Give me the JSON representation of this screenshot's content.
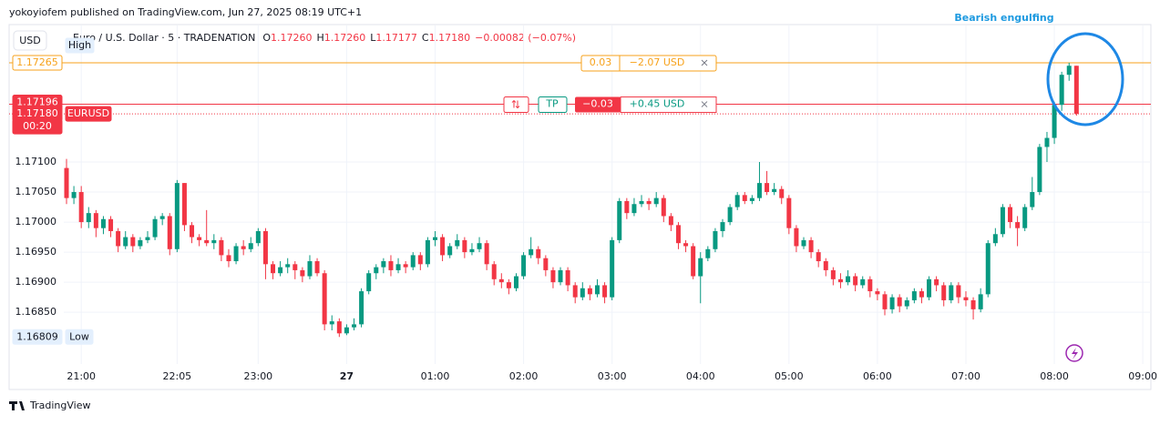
{
  "header": {
    "publisher": "yokoyiofem published on TradingView.com, Jun 27, 2025 08:19 UTC+1"
  },
  "chart_data": {
    "type": "candlestick",
    "title": "Euro / U.S. Dollar · 5 · TRADENATION",
    "ohlc_legend": [
      {
        "key": "O",
        "value": "1.17260"
      },
      {
        "key": "H",
        "value": "1.17260"
      },
      {
        "key": "L",
        "value": "1.17177"
      },
      {
        "key": "C",
        "value": "1.17180"
      }
    ],
    "change": "−0.00082 (−0.07%)",
    "currency": "USD",
    "annotation": "Bearish engulfing",
    "up_color": "#089981",
    "down_color": "#f23645",
    "x": [
      "20:50",
      "20:55",
      "21:00",
      "21:05",
      "21:10",
      "21:15",
      "21:20",
      "21:25",
      "21:30",
      "21:35",
      "21:40",
      "21:45",
      "21:50",
      "21:55",
      "22:00",
      "22:05",
      "22:10",
      "22:15",
      "22:20",
      "22:25",
      "22:30",
      "22:35",
      "22:40",
      "22:45",
      "22:50",
      "22:55",
      "23:00",
      "23:05",
      "23:10",
      "23:15",
      "23:20",
      "23:25",
      "23:30",
      "23:35",
      "23:40",
      "23:45",
      "23:50",
      "23:55",
      "00:00",
      "00:05",
      "00:10",
      "00:15",
      "00:20",
      "00:25",
      "00:30",
      "00:35",
      "00:40",
      "00:45",
      "00:50",
      "00:55",
      "01:00",
      "01:05",
      "01:10",
      "01:15",
      "01:20",
      "01:25",
      "01:30",
      "01:35",
      "01:40",
      "01:45",
      "01:50",
      "01:55",
      "02:00",
      "02:05",
      "02:10",
      "02:15",
      "02:20",
      "02:25",
      "02:30",
      "02:35",
      "02:40",
      "02:45",
      "02:50",
      "02:55",
      "03:00",
      "03:05",
      "03:10",
      "03:15",
      "03:20",
      "03:25",
      "03:30",
      "03:35",
      "03:40",
      "03:45",
      "03:50",
      "03:55",
      "04:00",
      "04:05",
      "04:10",
      "04:15",
      "04:20",
      "04:25",
      "04:30",
      "04:35",
      "04:40",
      "04:45",
      "04:50",
      "04:55",
      "05:00",
      "05:05",
      "05:10",
      "05:15",
      "05:20",
      "05:25",
      "05:30",
      "05:35",
      "05:40",
      "05:45",
      "05:50",
      "05:55",
      "06:00",
      "06:05",
      "06:10",
      "06:15",
      "06:20",
      "06:25",
      "06:30",
      "06:35",
      "06:40",
      "06:45",
      "06:50",
      "06:55",
      "07:00",
      "07:05",
      "07:10",
      "07:15",
      "07:20",
      "07:25",
      "07:30",
      "07:35",
      "07:40",
      "07:45",
      "07:50",
      "07:55",
      "08:00",
      "08:05",
      "08:10",
      "08:15"
    ],
    "open": [
      1.1709,
      1.1704,
      1.1705,
      1.17,
      1.17015,
      1.1699,
      1.17005,
      1.16985,
      1.1696,
      1.16975,
      1.1696,
      1.1697,
      1.16975,
      1.17005,
      1.1701,
      1.16955,
      1.17065,
      1.16995,
      1.16975,
      1.1697,
      1.16965,
      1.1697,
      1.16945,
      1.16935,
      1.1696,
      1.16955,
      1.16965,
      1.16985,
      1.1693,
      1.16915,
      1.16925,
      1.1693,
      1.1692,
      1.1691,
      1.16935,
      1.16915,
      1.1683,
      1.16835,
      1.16815,
      1.16825,
      1.1683,
      1.16885,
      1.16915,
      1.16925,
      1.16935,
      1.1692,
      1.1693,
      1.16925,
      1.16945,
      1.1693,
      1.1697,
      1.16975,
      1.16945,
      1.1696,
      1.1697,
      1.1695,
      1.16955,
      1.16965,
      1.1693,
      1.16905,
      1.169,
      1.1689,
      1.1691,
      1.16945,
      1.16955,
      1.1694,
      1.1692,
      1.169,
      1.1692,
      1.16895,
      1.16875,
      1.1689,
      1.1688,
      1.16895,
      1.16875,
      1.1697,
      1.17035,
      1.17015,
      1.1703,
      1.17035,
      1.1703,
      1.1704,
      1.1701,
      1.16995,
      1.16965,
      1.1696,
      1.1691,
      1.1694,
      1.16955,
      1.16985,
      1.17,
      1.17025,
      1.17045,
      1.17035,
      1.1704,
      1.17065,
      1.1705,
      1.17055,
      1.1704,
      1.1699,
      1.1696,
      1.1697,
      1.1695,
      1.16935,
      1.1692,
      1.16905,
      1.169,
      1.1691,
      1.16895,
      1.16905,
      1.16885,
      1.1688,
      1.16855,
      1.16875,
      1.1686,
      1.1687,
      1.16885,
      1.16875,
      1.16905,
      1.16895,
      1.1687,
      1.16895,
      1.16875,
      1.1687,
      1.16855,
      1.1688,
      1.16965,
      1.1698,
      1.17025,
      1.17,
      1.1699,
      1.17025,
      1.1705,
      1.17125,
      1.1714,
      1.17195,
      1.17245,
      1.1726
    ],
    "high": [
      1.17105,
      1.1706,
      1.1706,
      1.17025,
      1.1702,
      1.1701,
      1.1701,
      1.1699,
      1.16985,
      1.1698,
      1.16975,
      1.16985,
      1.1701,
      1.17015,
      1.17015,
      1.1707,
      1.17065,
      1.17,
      1.1698,
      1.1702,
      1.1698,
      1.16975,
      1.16955,
      1.16965,
      1.1697,
      1.16975,
      1.1699,
      1.1699,
      1.16935,
      1.16935,
      1.1694,
      1.16935,
      1.16925,
      1.16945,
      1.1694,
      1.1692,
      1.16845,
      1.1684,
      1.1683,
      1.1684,
      1.1689,
      1.1692,
      1.1693,
      1.1694,
      1.16945,
      1.1694,
      1.16935,
      1.1695,
      1.1695,
      1.16975,
      1.16985,
      1.1698,
      1.16965,
      1.1698,
      1.16975,
      1.16965,
      1.16975,
      1.1697,
      1.16935,
      1.16915,
      1.16905,
      1.16915,
      1.1695,
      1.16975,
      1.1696,
      1.16945,
      1.16925,
      1.16925,
      1.16925,
      1.169,
      1.169,
      1.16895,
      1.16905,
      1.169,
      1.16975,
      1.1704,
      1.1704,
      1.1704,
      1.17045,
      1.1704,
      1.1705,
      1.17045,
      1.17015,
      1.17,
      1.1697,
      1.16965,
      1.1695,
      1.1696,
      1.1699,
      1.17005,
      1.1703,
      1.1705,
      1.1705,
      1.17045,
      1.171,
      1.17085,
      1.17065,
      1.1706,
      1.17045,
      1.16995,
      1.16975,
      1.16975,
      1.16955,
      1.1694,
      1.16925,
      1.16915,
      1.1692,
      1.16915,
      1.1691,
      1.1691,
      1.1689,
      1.16885,
      1.1688,
      1.1688,
      1.16875,
      1.1689,
      1.1689,
      1.1691,
      1.1691,
      1.169,
      1.169,
      1.169,
      1.16885,
      1.16875,
      1.1689,
      1.1697,
      1.1699,
      1.1703,
      1.1703,
      1.1701,
      1.1703,
      1.17075,
      1.1713,
      1.1715,
      1.172,
      1.1725,
      1.17265,
      1.1726
    ],
    "low": [
      1.1703,
      1.1703,
      1.1699,
      1.1699,
      1.16975,
      1.1698,
      1.16975,
      1.1695,
      1.16955,
      1.1695,
      1.16955,
      1.16965,
      1.1697,
      1.16995,
      1.16945,
      1.1695,
      1.16985,
      1.16965,
      1.1696,
      1.1696,
      1.16955,
      1.16935,
      1.16925,
      1.1693,
      1.16945,
      1.1695,
      1.1696,
      1.16905,
      1.16905,
      1.1691,
      1.16915,
      1.16905,
      1.169,
      1.16905,
      1.1691,
      1.1682,
      1.1682,
      1.16809,
      1.16812,
      1.1682,
      1.16825,
      1.1688,
      1.16905,
      1.16915,
      1.1691,
      1.16915,
      1.16915,
      1.1692,
      1.1692,
      1.16925,
      1.1696,
      1.16935,
      1.1694,
      1.16955,
      1.1694,
      1.16945,
      1.1695,
      1.1692,
      1.16895,
      1.1689,
      1.1688,
      1.16885,
      1.16905,
      1.1694,
      1.1693,
      1.1691,
      1.1689,
      1.16895,
      1.16885,
      1.16865,
      1.1687,
      1.1687,
      1.16875,
      1.16865,
      1.1687,
      1.16965,
      1.17005,
      1.1701,
      1.17025,
      1.1702,
      1.17025,
      1.17,
      1.16985,
      1.16955,
      1.1695,
      1.16905,
      1.16865,
      1.16935,
      1.1695,
      1.16975,
      1.16995,
      1.1702,
      1.1703,
      1.1703,
      1.17035,
      1.17045,
      1.17045,
      1.1703,
      1.1698,
      1.1695,
      1.16955,
      1.1694,
      1.16925,
      1.1691,
      1.16895,
      1.1689,
      1.16895,
      1.16885,
      1.1689,
      1.16875,
      1.1687,
      1.16845,
      1.16848,
      1.1685,
      1.16855,
      1.16865,
      1.16865,
      1.1687,
      1.16885,
      1.1686,
      1.16865,
      1.16865,
      1.1686,
      1.16838,
      1.1685,
      1.16875,
      1.1696,
      1.16975,
      1.1699,
      1.1696,
      1.16985,
      1.1702,
      1.17045,
      1.171,
      1.1713,
      1.17185,
      1.17235,
      1.17177
    ],
    "close": [
      1.1704,
      1.1705,
      1.17,
      1.17015,
      1.1699,
      1.17005,
      1.16985,
      1.1696,
      1.16975,
      1.1696,
      1.1697,
      1.16975,
      1.17005,
      1.1701,
      1.16955,
      1.17065,
      1.16995,
      1.16975,
      1.1697,
      1.16965,
      1.1697,
      1.16945,
      1.16935,
      1.1696,
      1.16955,
      1.16965,
      1.16985,
      1.1693,
      1.16915,
      1.16925,
      1.1693,
      1.1692,
      1.1691,
      1.16935,
      1.16915,
      1.1683,
      1.16835,
      1.16815,
      1.16825,
      1.1683,
      1.16885,
      1.16915,
      1.16925,
      1.16935,
      1.1692,
      1.1693,
      1.16925,
      1.16945,
      1.1693,
      1.1697,
      1.16975,
      1.16945,
      1.1696,
      1.1697,
      1.1695,
      1.16955,
      1.16965,
      1.1693,
      1.16905,
      1.169,
      1.1689,
      1.1691,
      1.16945,
      1.16955,
      1.1694,
      1.1692,
      1.169,
      1.1692,
      1.16895,
      1.16875,
      1.1689,
      1.1688,
      1.16895,
      1.16875,
      1.1697,
      1.17035,
      1.17015,
      1.1703,
      1.17035,
      1.1703,
      1.1704,
      1.1701,
      1.16995,
      1.16965,
      1.1696,
      1.1691,
      1.1694,
      1.16955,
      1.16985,
      1.17,
      1.17025,
      1.17045,
      1.17035,
      1.1704,
      1.17065,
      1.1705,
      1.17055,
      1.1704,
      1.1699,
      1.1696,
      1.1697,
      1.1695,
      1.16935,
      1.1692,
      1.16905,
      1.169,
      1.1691,
      1.16895,
      1.16905,
      1.16885,
      1.1688,
      1.16855,
      1.16875,
      1.1686,
      1.1687,
      1.16885,
      1.16875,
      1.16905,
      1.16895,
      1.1687,
      1.16895,
      1.16875,
      1.1687,
      1.16855,
      1.1688,
      1.16965,
      1.1698,
      1.17025,
      1.17,
      1.1699,
      1.17025,
      1.1705,
      1.17125,
      1.1714,
      1.17195,
      1.17245,
      1.1726,
      1.1718
    ],
    "ylim": [
      1.16764,
      1.17327
    ],
    "yticks": [
      {
        "value": 1.1685,
        "label": "1.16850"
      },
      {
        "value": 1.169,
        "label": "1.16900"
      },
      {
        "value": 1.1695,
        "label": "1.16950"
      },
      {
        "value": 1.17,
        "label": "1.17000"
      },
      {
        "value": 1.1705,
        "label": "1.17050"
      },
      {
        "value": 1.171,
        "label": "1.17100"
      }
    ],
    "xticks": [
      "21:00",
      "22:05",
      "23:00",
      {
        "value": "00:00",
        "label": "27"
      },
      "01:00",
      "02:00",
      "03:00",
      "04:00",
      "05:00",
      "06:00",
      "07:00",
      "08:00",
      "09:00"
    ],
    "grid": true,
    "price_lines": [
      {
        "value": 1.17265,
        "label": "1.17265",
        "color": "#f7a21b",
        "style": "solid"
      },
      {
        "value": 1.17196,
        "label": "1.17196",
        "color": "#f23645",
        "style": "solid"
      },
      {
        "value": 1.1718,
        "label": "1.17180",
        "color": "#f23645",
        "style": "dotted"
      }
    ],
    "symbol": "EURUSD",
    "countdown": "00:20",
    "high_marker": {
      "text": "High"
    },
    "low_marker": {
      "text": "Low",
      "value": 1.16809,
      "label": "1.16809"
    },
    "position": {
      "stop": {
        "ticks": "0.03",
        "amount": "−2.07 USD"
      },
      "target_button": "TP",
      "close": {
        "ticks": "−0.03",
        "amount": "+0.45 USD"
      }
    }
  },
  "footer": {
    "brand": "TradingView"
  }
}
